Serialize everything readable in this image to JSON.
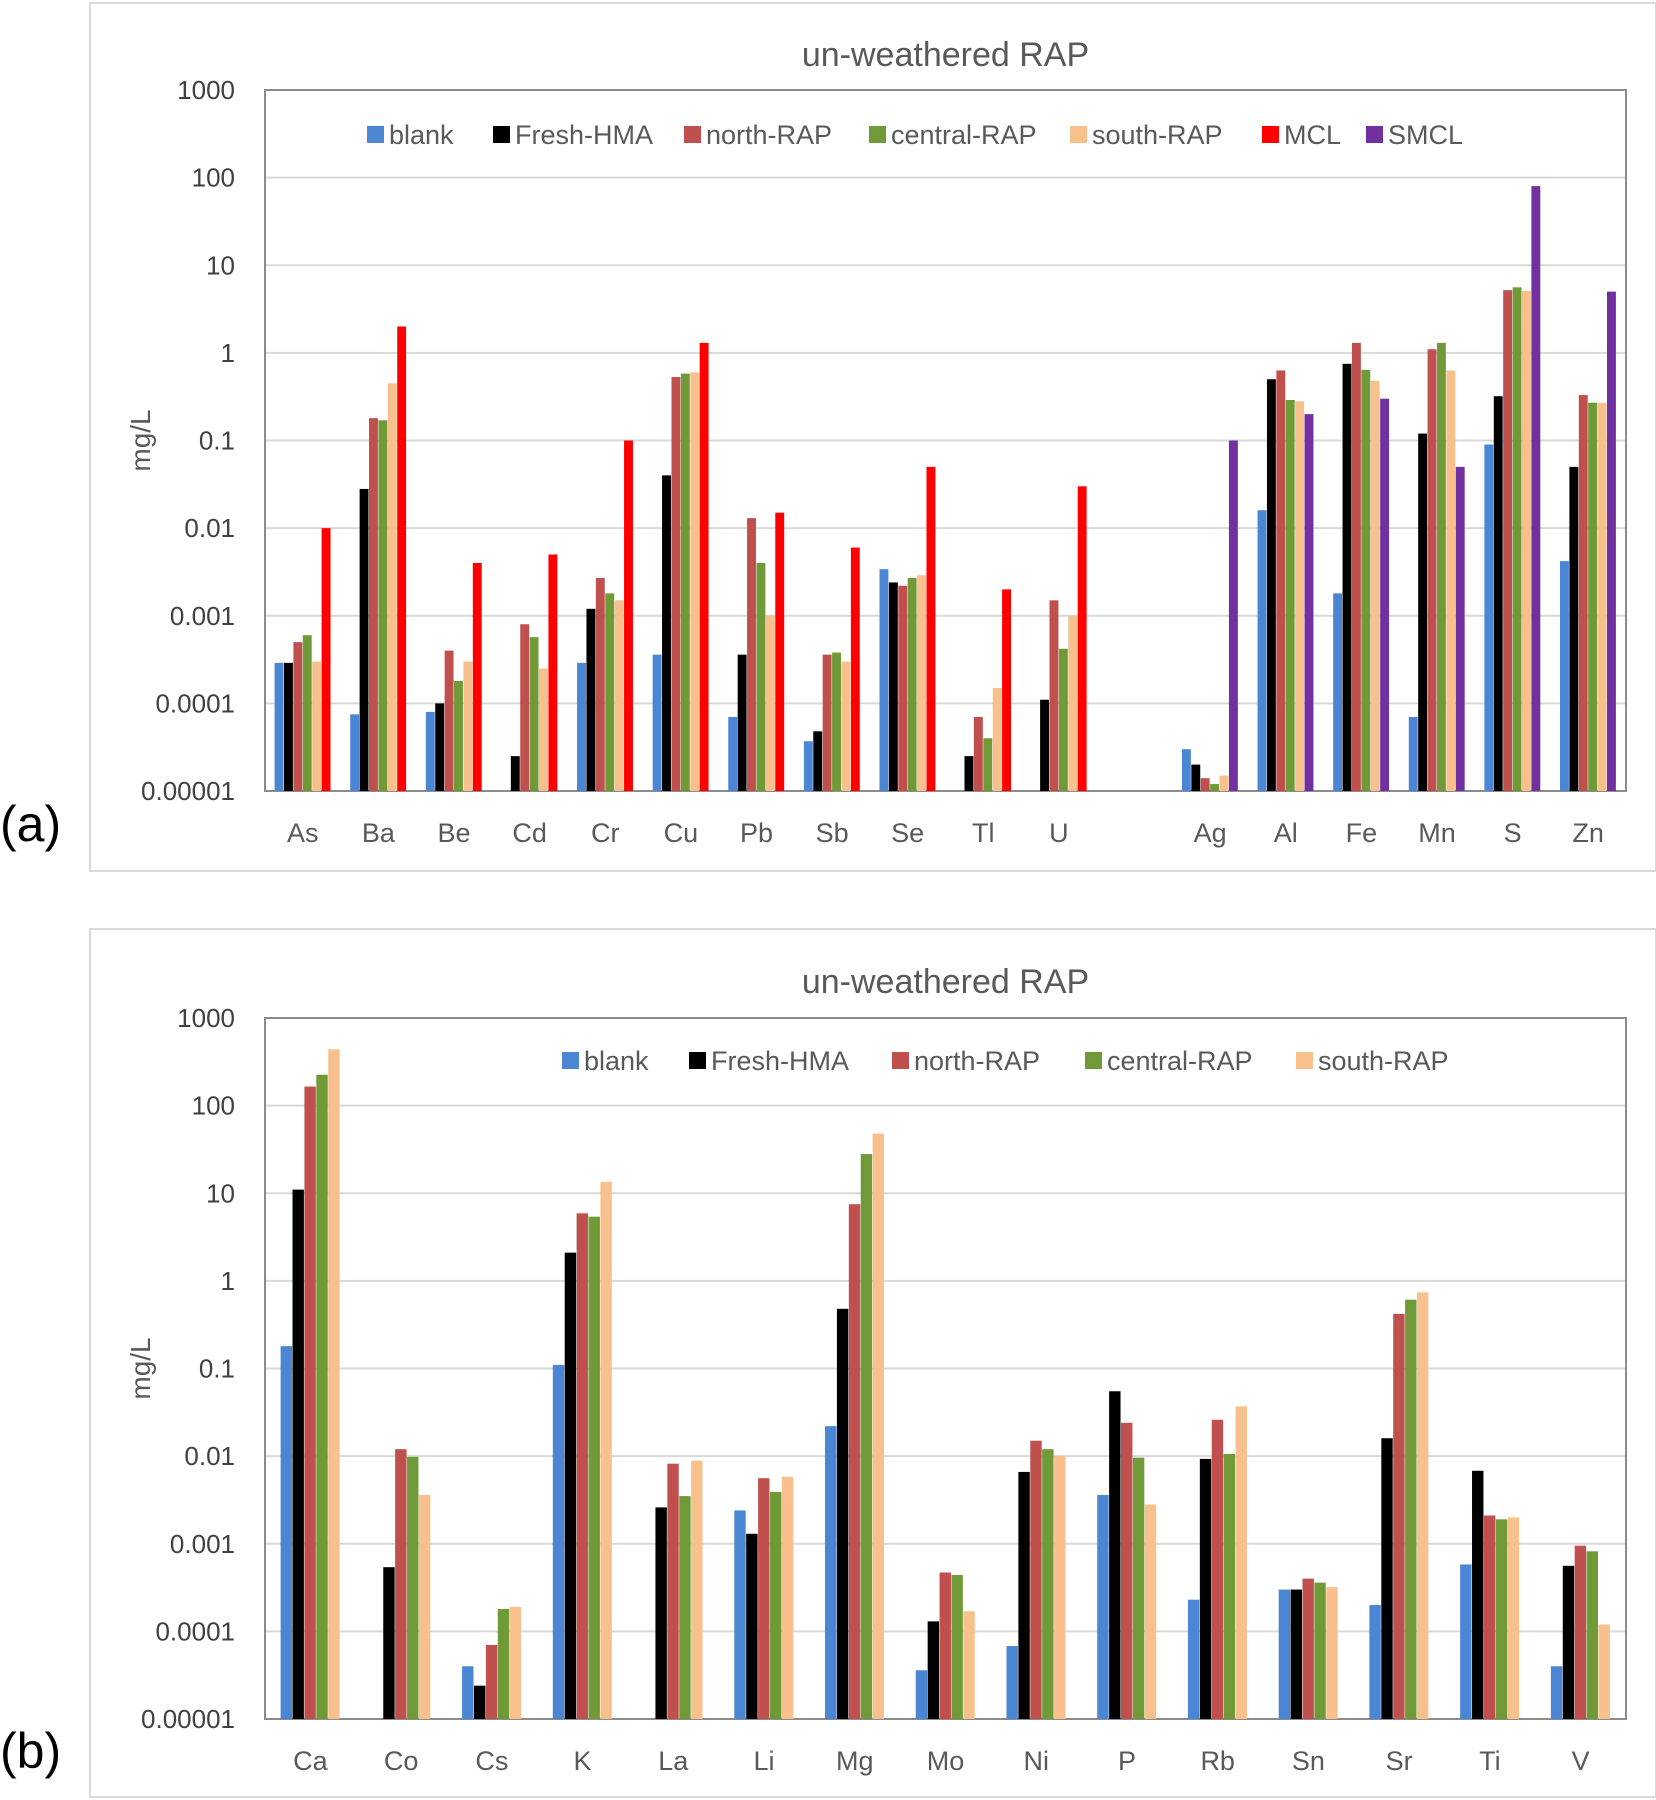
{
  "panel_labels": [
    "(a)",
    "(b)"
  ],
  "chart_data": [
    {
      "type": "bar",
      "scale": "log",
      "title": "un-weathered RAP",
      "xlabel": "",
      "ylabel": "mg/L",
      "ylim": [
        1e-05,
        1000
      ],
      "ytick_labels": [
        "0.00001",
        "0.0001",
        "0.001",
        "0.01",
        "0.1",
        "1",
        "10",
        "100",
        "1000"
      ],
      "grid": true,
      "legend_position": "top-center",
      "categories": [
        "As",
        "Ba",
        "Be",
        "Cd",
        "Cr",
        "Cu",
        "Pb",
        "Sb",
        "Se",
        "Tl",
        "U",
        "",
        "Ag",
        "Al",
        "Fe",
        "Mn",
        "S",
        "Zn"
      ],
      "series": [
        {
          "name": "blank",
          "color": "#4a86d4",
          "values": [
            0.00029,
            7.5e-05,
            8e-05,
            null,
            0.00029,
            0.00036,
            7e-05,
            3.7e-05,
            0.0034,
            null,
            null,
            null,
            3e-05,
            0.016,
            0.0018,
            7e-05,
            0.09,
            0.0042
          ]
        },
        {
          "name": "Fresh-HMA",
          "color": "#000000",
          "values": [
            0.00029,
            0.028,
            0.0001,
            2.5e-05,
            0.0012,
            0.04,
            0.00036,
            4.8e-05,
            0.0024,
            2.5e-05,
            0.00011,
            null,
            2e-05,
            0.5,
            0.75,
            0.12,
            0.32,
            0.05
          ]
        },
        {
          "name": "north-RAP",
          "color": "#c0504d",
          "values": [
            0.0005,
            0.18,
            0.0004,
            0.0008,
            0.0027,
            0.53,
            0.013,
            0.00036,
            0.0022,
            7e-05,
            0.0015,
            null,
            1.4e-05,
            0.63,
            1.3,
            1.1,
            5.2,
            0.33
          ]
        },
        {
          "name": "central-RAP",
          "color": "#6f9a37",
          "values": [
            0.0006,
            0.17,
            0.00018,
            0.00057,
            0.0018,
            0.58,
            0.004,
            0.00038,
            0.0027,
            4e-05,
            0.00042,
            null,
            1.2e-05,
            0.29,
            0.64,
            1.3,
            5.6,
            0.27
          ]
        },
        {
          "name": "south-RAP",
          "color": "#f8c08d",
          "values": [
            0.0003,
            0.45,
            0.0003,
            0.00025,
            0.0015,
            0.6,
            0.001,
            0.0003,
            0.0029,
            0.00015,
            0.001,
            null,
            1.5e-05,
            0.28,
            0.48,
            0.63,
            5.1,
            0.27
          ]
        },
        {
          "name": "MCL",
          "color": "#ff0000",
          "values": [
            0.01,
            2,
            0.004,
            0.005,
            0.1,
            1.3,
            0.015,
            0.006,
            0.05,
            0.002,
            0.03,
            null,
            null,
            null,
            null,
            null,
            null,
            null
          ]
        },
        {
          "name": "SMCL",
          "color": "#7030a0",
          "values": [
            null,
            null,
            null,
            null,
            null,
            null,
            null,
            null,
            null,
            null,
            null,
            null,
            0.1,
            0.2,
            0.3,
            0.05,
            80,
            5
          ]
        }
      ]
    },
    {
      "type": "bar",
      "scale": "log",
      "title": "un-weathered RAP",
      "xlabel": "",
      "ylabel": "mg/L",
      "ylim": [
        1e-05,
        1000
      ],
      "ytick_labels": [
        "0.00001",
        "0.0001",
        "0.001",
        "0.01",
        "0.1",
        "1",
        "10",
        "100",
        "1000"
      ],
      "grid": true,
      "legend_position": "top-right",
      "categories": [
        "Ca",
        "Co",
        "Cs",
        "K",
        "La",
        "Li",
        "Mg",
        "Mo",
        "Ni",
        "P",
        "Rb",
        "Sn",
        "Sr",
        "Ti",
        "V"
      ],
      "series": [
        {
          "name": "blank",
          "color": "#4a86d4",
          "values": [
            0.18,
            null,
            4e-05,
            0.11,
            null,
            0.0024,
            0.022,
            3.6e-05,
            6.8e-05,
            0.0036,
            0.00023,
            0.0003,
            0.0002,
            0.00058,
            4e-05
          ]
        },
        {
          "name": "Fresh-HMA",
          "color": "#000000",
          "values": [
            11,
            0.00054,
            2.4e-05,
            2.1,
            0.0026,
            0.0013,
            0.48,
            0.00013,
            0.0066,
            0.055,
            0.0093,
            0.0003,
            0.016,
            0.0068,
            0.00056
          ]
        },
        {
          "name": "north-RAP",
          "color": "#c0504d",
          "values": [
            165,
            0.012,
            7e-05,
            5.9,
            0.0082,
            0.0056,
            7.5,
            0.00047,
            0.015,
            0.024,
            0.026,
            0.0004,
            0.42,
            0.0021,
            0.00095
          ]
        },
        {
          "name": "central-RAP",
          "color": "#6f9a37",
          "values": [
            225,
            0.0098,
            0.00018,
            5.4,
            0.0035,
            0.0039,
            28,
            0.00044,
            0.012,
            0.0096,
            0.0106,
            0.00036,
            0.61,
            0.0019,
            0.00082
          ]
        },
        {
          "name": "south-RAP",
          "color": "#f8c08d",
          "values": [
            440,
            0.0036,
            0.00019,
            13.5,
            0.0089,
            0.0058,
            48,
            0.00017,
            0.0101,
            0.0028,
            0.037,
            0.00032,
            0.74,
            0.002,
            0.00012
          ]
        }
      ]
    }
  ]
}
